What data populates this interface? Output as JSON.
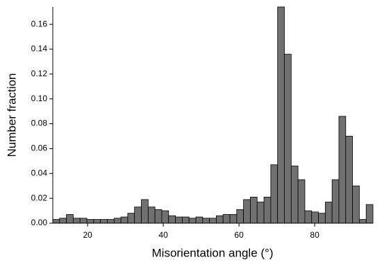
{
  "chart_data": {
    "type": "histogram",
    "xlabel": "Misorientation angle (°)",
    "ylabel": "Number fraction",
    "bins": [
      10.8,
      12.6,
      14.4,
      16.2,
      18.0,
      19.8,
      21.6,
      23.4,
      25.2,
      27.0,
      28.8,
      30.6,
      32.4,
      34.2,
      36.0,
      37.8,
      39.6,
      41.4,
      43.2,
      45.0,
      46.8,
      48.6,
      50.4,
      52.2,
      54.0,
      55.8,
      57.6,
      59.4,
      61.2,
      63.0,
      64.8,
      66.6,
      68.4,
      70.2,
      72.0,
      73.8,
      75.6,
      77.4,
      79.2,
      81.0,
      82.8,
      84.6,
      86.4,
      88.2,
      90.0,
      91.8,
      93.6,
      95.4
    ],
    "values": [
      0.003,
      0.004,
      0.007,
      0.004,
      0.004,
      0.003,
      0.003,
      0.003,
      0.003,
      0.004,
      0.005,
      0.008,
      0.013,
      0.019,
      0.013,
      0.011,
      0.01,
      0.006,
      0.005,
      0.005,
      0.004,
      0.005,
      0.004,
      0.004,
      0.006,
      0.007,
      0.007,
      0.011,
      0.019,
      0.021,
      0.017,
      0.021,
      0.047,
      0.174,
      0.136,
      0.046,
      0.035,
      0.01,
      0.009,
      0.008,
      0.017,
      0.035,
      0.086,
      0.07,
      0.03,
      0.003,
      0.015
    ],
    "color": "#707070",
    "xlim": [
      10.8,
      95.4
    ],
    "xticks": [
      20,
      40,
      60,
      80
    ],
    "ylim": [
      0,
      0.174
    ],
    "yticks": [
      {
        "value": 0,
        "label": "0.00"
      },
      {
        "value": 0.02,
        "label": "0.02"
      },
      {
        "value": 0.04,
        "label": "0.04"
      },
      {
        "value": 0.06,
        "label": "0.06"
      },
      {
        "value": 0.08,
        "label": "0.08"
      },
      {
        "value": 0.1,
        "label": "0.10"
      },
      {
        "value": 0.12,
        "label": "0.12"
      },
      {
        "value": 0.14,
        "label": "0.14"
      },
      {
        "value": 0.16,
        "label": "0.16"
      }
    ]
  }
}
